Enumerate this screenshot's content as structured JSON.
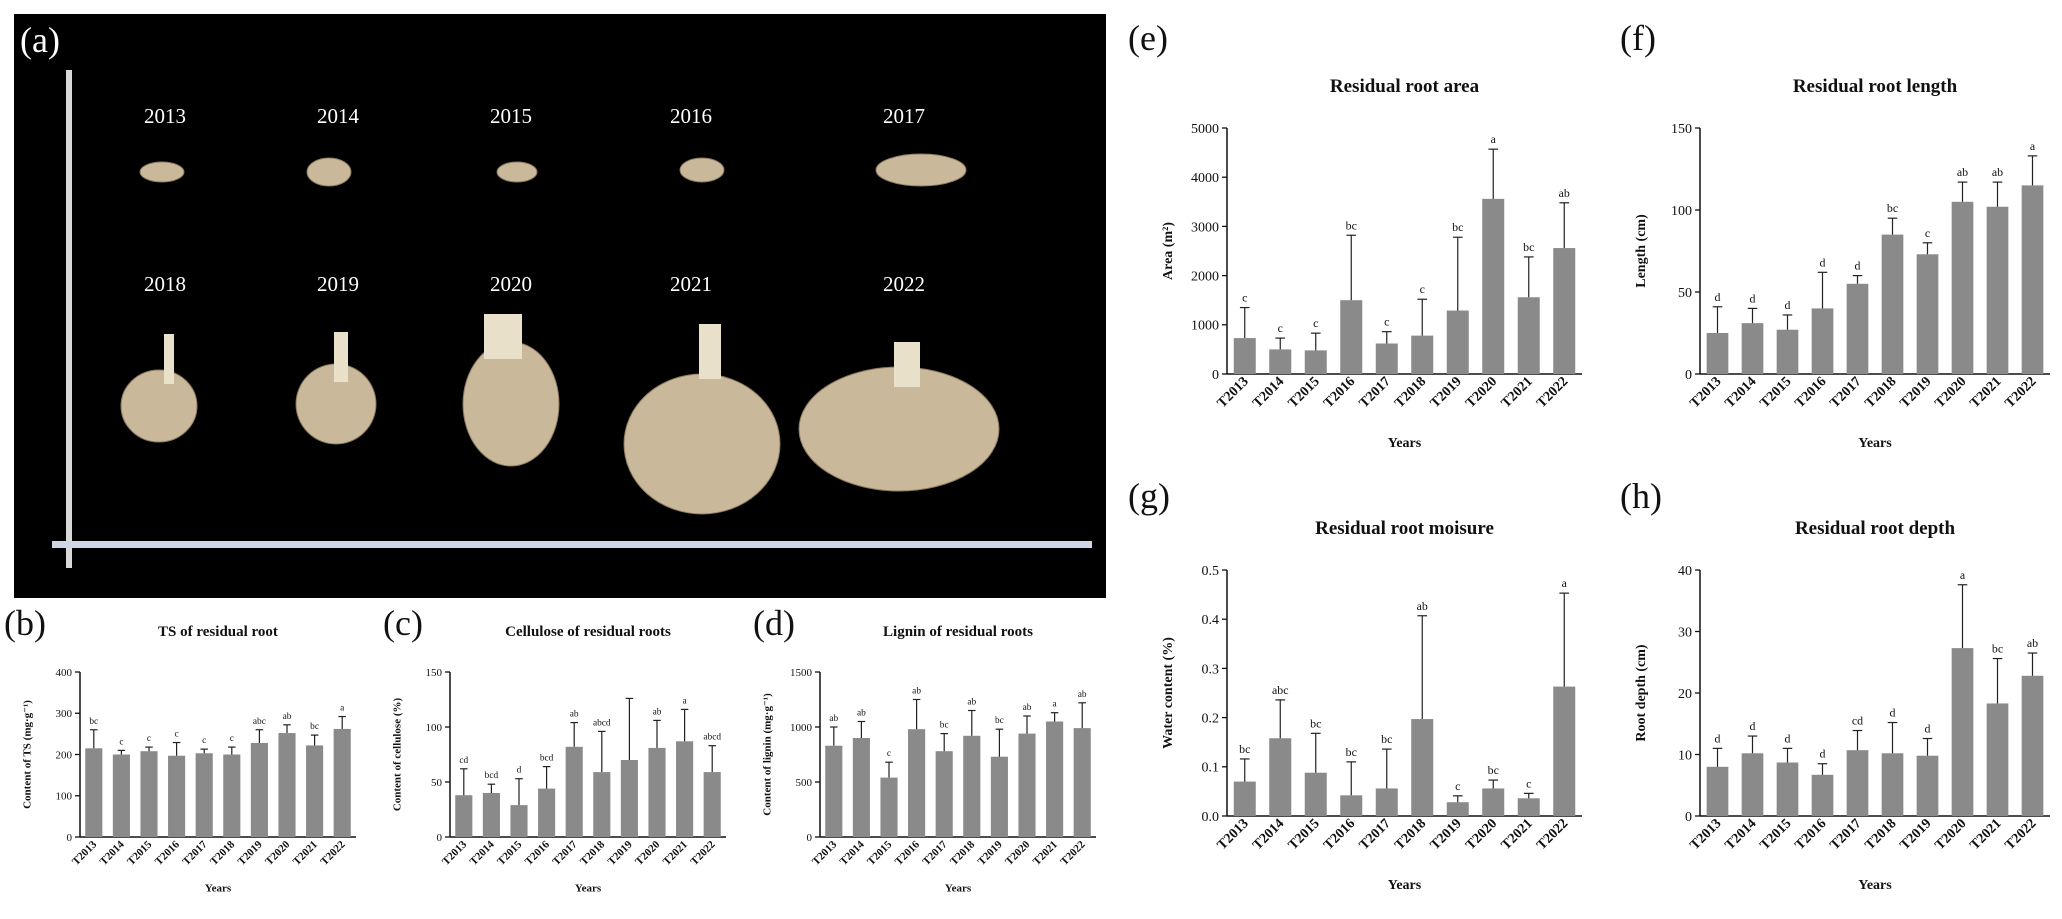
{
  "bar_color": "#8a8a8a",
  "photo": {
    "label": "(a)",
    "years": [
      "2013",
      "2014",
      "2015",
      "2016",
      "2017",
      "2018",
      "2019",
      "2020",
      "2021",
      "2022"
    ]
  },
  "chart_data": [
    {
      "panel": "(b)",
      "type": "bar",
      "title": "TS of residual root",
      "xlabel": "Years",
      "ylabel": "Content of TS (mg·g⁻¹)",
      "categories": [
        "T2013",
        "T2014",
        "T2015",
        "T2016",
        "T2017",
        "T2018",
        "T2019",
        "T2020",
        "T2021",
        "T2022"
      ],
      "values": [
        215,
        200,
        208,
        197,
        203,
        200,
        228,
        252,
        222,
        262
      ],
      "errors": [
        45,
        10,
        10,
        32,
        10,
        18,
        32,
        20,
        25,
        30
      ],
      "letters": [
        "bc",
        "c",
        "c",
        "c",
        "c",
        "c",
        "abc",
        "ab",
        "bc",
        "a"
      ],
      "ylim": [
        0,
        400
      ],
      "yticks": [
        0,
        100,
        200,
        300,
        400
      ]
    },
    {
      "panel": "(c)",
      "type": "bar",
      "title": "Cellulose of  residual roots",
      "xlabel": "Years",
      "ylabel": "Content of cellulose (%)",
      "categories": [
        "T2013",
        "T2014",
        "T2015",
        "T2016",
        "T2017",
        "T2018",
        "T2019",
        "T2020",
        "T2021",
        "T2022"
      ],
      "values": [
        38,
        40,
        29,
        44,
        82,
        59,
        70,
        81,
        87,
        59
      ],
      "errors": [
        24,
        8,
        24,
        20,
        22,
        37,
        56,
        25,
        29,
        24
      ],
      "letters": [
        "cd",
        "bcd",
        "d",
        "bcd",
        "ab",
        "abcd",
        "",
        "ab",
        "a",
        "abcd"
      ],
      "ylim": [
        0,
        150
      ],
      "yticks": [
        0,
        50,
        100,
        150
      ]
    },
    {
      "panel": "(d)",
      "type": "bar",
      "title": "Lignin of residual roots",
      "xlabel": "Years",
      "ylabel": "Content of lignin (mg·g⁻¹)",
      "categories": [
        "T2013",
        "T2014",
        "T2015",
        "T2016",
        "T2017",
        "T2018",
        "T2019",
        "T2020",
        "T2021",
        "T2022"
      ],
      "values": [
        830,
        900,
        540,
        980,
        780,
        920,
        730,
        940,
        1050,
        990
      ],
      "errors": [
        170,
        150,
        140,
        270,
        160,
        230,
        250,
        160,
        80,
        230
      ],
      "letters": [
        "ab",
        "ab",
        "c",
        "ab",
        "bc",
        "ab",
        "bc",
        "ab",
        "a",
        "ab"
      ],
      "ylim": [
        0,
        1500
      ],
      "yticks": [
        0,
        500,
        1000,
        1500
      ]
    },
    {
      "panel": "(e)",
      "type": "bar",
      "title": "Residual root area",
      "xlabel": "Years",
      "ylabel": "Area (m²)",
      "categories": [
        "T2013",
        "T2014",
        "T2015",
        "T2016",
        "T2017",
        "T2018",
        "T2019",
        "T2020",
        "T2021",
        "T2022"
      ],
      "values": [
        730,
        500,
        480,
        1500,
        620,
        780,
        1290,
        3560,
        1560,
        2560
      ],
      "errors": [
        620,
        230,
        350,
        1320,
        240,
        740,
        1490,
        1010,
        820,
        920
      ],
      "letters": [
        "c",
        "c",
        "c",
        "bc",
        "c",
        "c",
        "bc",
        "a",
        "bc",
        "ab"
      ],
      "ylim": [
        0,
        5000
      ],
      "yticks": [
        0,
        1000,
        2000,
        3000,
        4000,
        5000
      ]
    },
    {
      "panel": "(f)",
      "type": "bar",
      "title": "Residual root length",
      "xlabel": "Years",
      "ylabel": "Length (cm)",
      "categories": [
        "T2013",
        "T2014",
        "T2015",
        "T2016",
        "T2017",
        "T2018",
        "T2019",
        "T2020",
        "T2021",
        "T2022"
      ],
      "values": [
        25,
        31,
        27,
        40,
        55,
        85,
        73,
        105,
        102,
        115
      ],
      "errors": [
        16,
        9,
        9,
        22,
        5,
        10,
        7,
        12,
        15,
        18
      ],
      "letters": [
        "d",
        "d",
        "d",
        "d",
        "d",
        "bc",
        "c",
        "ab",
        "ab",
        "a"
      ],
      "ylim": [
        0,
        150
      ],
      "yticks": [
        0,
        50,
        100,
        150
      ]
    },
    {
      "panel": "(g)",
      "type": "bar",
      "title": "Residual root moisure",
      "xlabel": "Years",
      "ylabel": "Water content (%)",
      "categories": [
        "T2013",
        "T2014",
        "T2015",
        "T2016",
        "T2017",
        "T2018",
        "T2019",
        "T2020",
        "T2021",
        "T2022"
      ],
      "values": [
        0.07,
        0.158,
        0.088,
        0.042,
        0.056,
        0.197,
        0.028,
        0.056,
        0.036,
        0.263
      ],
      "errors": [
        0.046,
        0.078,
        0.08,
        0.068,
        0.08,
        0.21,
        0.013,
        0.017,
        0.01,
        0.19
      ],
      "letters": [
        "bc",
        "abc",
        "bc",
        "bc",
        "bc",
        "ab",
        "c",
        "bc",
        "c",
        "a"
      ],
      "ylim": [
        0,
        0.5
      ],
      "yticks": [
        0.0,
        0.1,
        0.2,
        0.3,
        0.4,
        0.5
      ],
      "ytick_labels": [
        "0.0",
        "0.1",
        "0.2",
        "0.3",
        "0.4",
        "0.5"
      ]
    },
    {
      "panel": "(h)",
      "type": "bar",
      "title": "Residual root depth",
      "xlabel": "Years",
      "ylabel": "Root depth (cm)",
      "categories": [
        "T2013",
        "T2014",
        "T2015",
        "T2016",
        "T2017",
        "T2018",
        "T2019",
        "T2020",
        "T2021",
        "T2022"
      ],
      "values": [
        8,
        10.2,
        8.7,
        6.7,
        10.7,
        10.2,
        9.8,
        27.3,
        18.3,
        22.8
      ],
      "errors": [
        3,
        2.8,
        2.3,
        1.8,
        3.2,
        5,
        2.8,
        10.3,
        7.3,
        3.7
      ],
      "letters": [
        "d",
        "d",
        "d",
        "d",
        "cd",
        "d",
        "d",
        "a",
        "bc",
        "ab"
      ],
      "ylim": [
        0,
        40
      ],
      "yticks": [
        0,
        10,
        20,
        30,
        40
      ]
    }
  ]
}
